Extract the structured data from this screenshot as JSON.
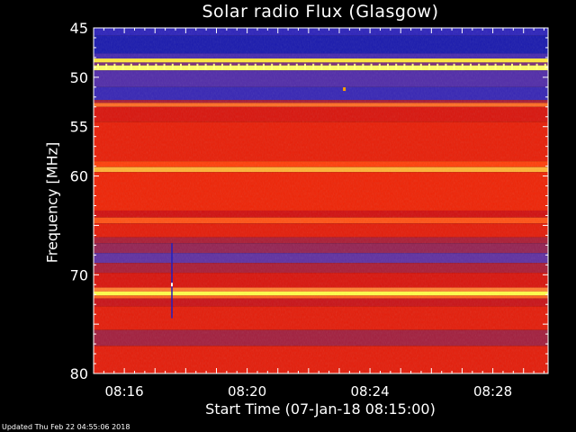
{
  "chart_data": {
    "type": "heatmap",
    "title": "Solar radio Flux (Glasgow)",
    "xlabel": "Start Time (07-Jan-18 08:15:00)",
    "ylabel": "Frequency [MHz]",
    "xlim_minutes": [
      15,
      29.8
    ],
    "ylim": [
      45,
      80
    ],
    "y_inverted": true,
    "x_ticks": [
      {
        "minute": 16,
        "label": "08:16"
      },
      {
        "minute": 20,
        "label": "08:20"
      },
      {
        "minute": 24,
        "label": "08:24"
      },
      {
        "minute": 28,
        "label": "08:28"
      }
    ],
    "y_ticks": [
      45,
      50,
      55,
      60,
      65,
      70,
      75,
      80
    ],
    "y_tick_labels": [
      "45",
      "50",
      "55",
      "60",
      "",
      "70",
      "",
      "80"
    ],
    "colorscale": [
      "#000060",
      "#2020c0",
      "#6030a0",
      "#a02040",
      "#d01010",
      "#ff3000",
      "#ff8030",
      "#ffff40",
      "#ffffff"
    ],
    "frequency_bands": [
      {
        "from": 45.0,
        "to": 45.8,
        "level": 0.15
      },
      {
        "from": 45.8,
        "to": 47.6,
        "level": 0.1
      },
      {
        "from": 47.6,
        "to": 48.1,
        "level": 0.2
      },
      {
        "from": 48.1,
        "to": 48.5,
        "level": 0.85
      },
      {
        "from": 48.5,
        "to": 48.8,
        "level": 0.3
      },
      {
        "from": 48.8,
        "to": 49.3,
        "level": 0.9
      },
      {
        "from": 49.3,
        "to": 51.0,
        "level": 0.22
      },
      {
        "from": 51.0,
        "to": 52.3,
        "level": 0.17
      },
      {
        "from": 52.3,
        "to": 52.6,
        "level": 0.4
      },
      {
        "from": 52.6,
        "to": 53.0,
        "level": 0.72
      },
      {
        "from": 53.0,
        "to": 54.5,
        "level": 0.52
      },
      {
        "from": 54.5,
        "to": 58.5,
        "level": 0.56
      },
      {
        "from": 58.5,
        "to": 59.1,
        "level": 0.65
      },
      {
        "from": 59.1,
        "to": 59.6,
        "level": 0.8
      },
      {
        "from": 59.6,
        "to": 63.5,
        "level": 0.58
      },
      {
        "from": 63.5,
        "to": 64.2,
        "level": 0.5
      },
      {
        "from": 64.2,
        "to": 64.8,
        "level": 0.68
      },
      {
        "from": 64.8,
        "to": 66.2,
        "level": 0.55
      },
      {
        "from": 66.2,
        "to": 66.8,
        "level": 0.4
      },
      {
        "from": 66.8,
        "to": 67.8,
        "level": 0.35
      },
      {
        "from": 67.8,
        "to": 68.8,
        "level": 0.25
      },
      {
        "from": 68.8,
        "to": 69.8,
        "level": 0.4
      },
      {
        "from": 69.8,
        "to": 71.3,
        "level": 0.52
      },
      {
        "from": 71.3,
        "to": 71.7,
        "level": 0.75
      },
      {
        "from": 71.7,
        "to": 72.1,
        "level": 0.88
      },
      {
        "from": 72.1,
        "to": 72.4,
        "level": 0.7
      },
      {
        "from": 72.4,
        "to": 73.2,
        "level": 0.48
      },
      {
        "from": 73.2,
        "to": 75.6,
        "level": 0.55
      },
      {
        "from": 75.6,
        "to": 77.2,
        "level": 0.38
      },
      {
        "from": 77.2,
        "to": 80.0,
        "level": 0.55
      }
    ],
    "spike_line": {
      "minute": 17.55,
      "mhz_from": 66.8,
      "mhz_to": 74.4
    },
    "spike_dot": {
      "minute": 17.55,
      "mhz": 71.0
    },
    "pulse_row_mhz": 48.9,
    "hot_pixel": {
      "minute": 23.15,
      "mhz": 51.2
    }
  },
  "footer_text": "Updated Thu Feb 22 04:55:06 2018"
}
